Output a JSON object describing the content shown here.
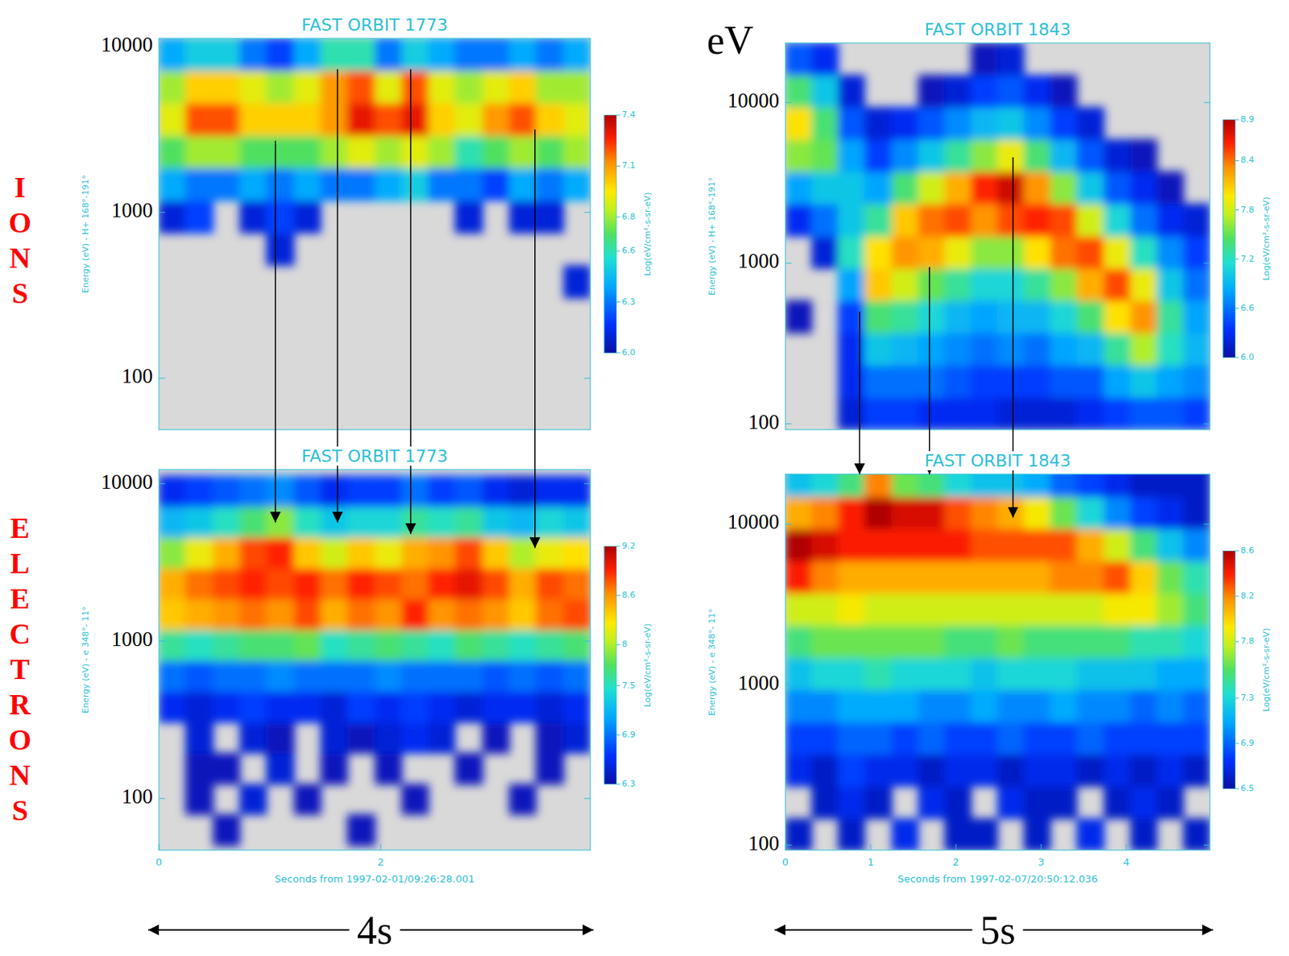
{
  "row_labels": [
    "IONS",
    "ELECTRONS"
  ],
  "unit_label": "eV",
  "chart_data": [
    {
      "type": "heatmap",
      "title": "FAST ORBIT 1773",
      "y_label": "Energy (eV) - H+ 168°-191°",
      "log": "y",
      "tick_labels": "y",
      "xlim": [
        0,
        3.89
      ],
      "ylim": [
        49,
        11200
      ],
      "yticks": [
        100,
        1000,
        10000
      ],
      "x_bins": [
        0,
        0.24,
        0.49,
        0.73,
        0.97,
        1.22,
        1.46,
        1.7,
        1.95,
        2.19,
        2.43,
        2.67,
        2.92,
        3.16,
        3.4,
        3.65,
        3.89
      ],
      "y_bins": [
        50,
        79,
        123,
        194,
        304,
        478,
        750,
        1180,
        1850,
        2900,
        4560,
        7160,
        11200
      ],
      "values": [
        [
          null,
          null,
          null,
          null,
          null,
          null,
          null,
          null,
          null,
          null,
          null,
          null,
          null,
          null,
          null,
          null
        ],
        [
          null,
          null,
          null,
          null,
          null,
          null,
          null,
          null,
          null,
          null,
          null,
          null,
          null,
          null,
          null,
          null
        ],
        [
          null,
          null,
          null,
          null,
          null,
          null,
          null,
          null,
          null,
          null,
          null,
          null,
          null,
          null,
          null,
          null
        ],
        [
          null,
          null,
          null,
          null,
          null,
          null,
          null,
          null,
          null,
          null,
          null,
          null,
          null,
          null,
          null,
          null
        ],
        [
          null,
          null,
          null,
          null,
          null,
          null,
          null,
          null,
          null,
          null,
          null,
          null,
          null,
          null,
          null,
          6.1
        ],
        [
          null,
          null,
          null,
          null,
          6.1,
          null,
          null,
          null,
          null,
          null,
          null,
          null,
          null,
          null,
          null,
          null
        ],
        [
          6.1,
          6.2,
          null,
          6.1,
          6.2,
          6.1,
          null,
          null,
          null,
          null,
          null,
          6.1,
          null,
          6.1,
          6.1,
          null
        ],
        [
          6.4,
          6.3,
          6.3,
          6.4,
          6.3,
          6.4,
          6.3,
          6.3,
          6.4,
          6.5,
          6.3,
          6.3,
          6.2,
          6.4,
          6.3,
          6.4
        ],
        [
          6.7,
          6.8,
          6.8,
          6.7,
          6.7,
          6.7,
          6.8,
          6.9,
          6.8,
          6.9,
          6.8,
          6.6,
          6.7,
          6.8,
          6.7,
          6.8
        ],
        [
          6.9,
          7.2,
          7.2,
          7.0,
          7.0,
          7.0,
          7.1,
          7.3,
          7.2,
          7.3,
          7.0,
          6.9,
          7.1,
          7.2,
          7.0,
          6.9
        ],
        [
          6.8,
          7.0,
          7.0,
          6.9,
          6.8,
          6.9,
          7.1,
          7.2,
          6.9,
          7.2,
          6.9,
          6.8,
          6.9,
          7.0,
          6.8,
          6.8
        ],
        [
          6.4,
          6.5,
          6.5,
          6.3,
          6.2,
          6.4,
          6.6,
          6.6,
          6.3,
          6.5,
          6.4,
          6.3,
          6.3,
          6.4,
          6.3,
          6.4
        ]
      ],
      "colorbar": {
        "label": "Log(eV/cm²-s-sr-eV)",
        "range": [
          6.0,
          7.4
        ],
        "ticks": [
          {
            "value": 6,
            "label": "6.0"
          },
          6.3,
          6.6,
          6.8,
          7.1,
          7.4
        ]
      },
      "arrows": [
        {
          "x": 1.05,
          "y_from": 2700,
          "y_to": 5670
        },
        {
          "x": 1.61,
          "y_from": 7300,
          "y_to": 5670
        },
        {
          "x": 2.27,
          "y_from": 7300,
          "y_to": 4790
        },
        {
          "x": 3.39,
          "y_from": 3160,
          "y_to": 3900
        }
      ]
    },
    {
      "type": "heatmap",
      "title": "FAST ORBIT 1773",
      "y_label": "Energy (eV) - e 348°- 11°",
      "log": "y",
      "x_label": "Seconds from 1997-02-01/09:26:28.001",
      "span_label": "4s",
      "xlim": [
        0,
        3.89
      ],
      "ylim": [
        47,
        12300
      ],
      "xticks": [
        0,
        2
      ],
      "yticks": [
        100,
        1000,
        10000
      ],
      "x_bins": [
        0,
        0.24,
        0.49,
        0.73,
        0.97,
        1.22,
        1.46,
        1.7,
        1.95,
        2.19,
        2.43,
        2.67,
        2.92,
        3.16,
        3.4,
        3.65,
        3.89
      ],
      "y_bins": [
        50,
        79,
        123,
        194,
        304,
        478,
        750,
        1180,
        1850,
        2900,
        4560,
        7160,
        11200
      ],
      "values": [
        [
          null,
          null,
          6.4,
          null,
          null,
          null,
          null,
          6.4,
          null,
          null,
          null,
          null,
          null,
          null,
          null,
          null
        ],
        [
          null,
          6.4,
          null,
          6.5,
          null,
          6.4,
          null,
          null,
          null,
          6.4,
          null,
          null,
          null,
          6.4,
          null,
          null
        ],
        [
          null,
          6.4,
          6.4,
          null,
          6.5,
          null,
          6.4,
          null,
          6.4,
          null,
          null,
          6.4,
          null,
          null,
          6.4,
          null
        ],
        [
          null,
          6.5,
          null,
          6.5,
          6.4,
          null,
          6.5,
          6.4,
          6.5,
          6.6,
          6.5,
          null,
          6.4,
          null,
          6.4,
          6.5
        ],
        [
          6.6,
          6.5,
          6.6,
          6.7,
          6.6,
          6.6,
          6.5,
          6.7,
          6.6,
          6.7,
          6.6,
          6.5,
          6.6,
          6.6,
          6.5,
          6.6
        ],
        [
          6.9,
          6.8,
          6.9,
          6.9,
          7.0,
          6.9,
          6.9,
          6.9,
          7.0,
          6.9,
          6.9,
          6.9,
          6.8,
          6.9,
          6.8,
          6.9
        ],
        [
          7.6,
          7.5,
          7.6,
          7.7,
          7.7,
          7.8,
          7.5,
          7.6,
          7.7,
          7.6,
          7.5,
          7.7,
          7.6,
          7.5,
          7.6,
          7.7
        ],
        [
          8.4,
          8.5,
          8.6,
          8.7,
          8.6,
          8.8,
          8.5,
          8.7,
          8.6,
          8.9,
          8.6,
          8.7,
          8.6,
          8.4,
          8.7,
          8.8
        ],
        [
          8.5,
          8.7,
          8.8,
          8.9,
          8.8,
          8.9,
          8.7,
          8.9,
          8.8,
          8.7,
          8.9,
          9.0,
          8.8,
          8.5,
          8.8,
          8.7
        ],
        [
          7.9,
          8.2,
          8.5,
          8.8,
          8.9,
          8.4,
          8.1,
          8.4,
          8.2,
          8.5,
          8.6,
          8.8,
          8.4,
          8.0,
          8.2,
          8.3
        ],
        [
          7.2,
          7.3,
          7.5,
          7.7,
          7.9,
          7.5,
          7.3,
          7.4,
          7.4,
          7.6,
          7.5,
          7.6,
          7.3,
          7.2,
          7.4,
          7.3
        ],
        [
          6.6,
          6.7,
          6.8,
          6.9,
          7.0,
          6.8,
          6.6,
          6.7,
          6.7,
          6.9,
          6.7,
          6.8,
          6.6,
          6.5,
          6.6,
          6.6
        ]
      ],
      "colorbar": {
        "label": "Log(eV/cm²-s-sr-eV)",
        "range": [
          6.3,
          9.2
        ],
        "ticks": [
          6.3,
          6.9,
          7.5,
          8.0,
          8.6,
          9.2
        ]
      }
    },
    {
      "type": "heatmap",
      "title": "FAST ORBIT 1843",
      "y_label": "Energy (eV) - H+ 168°-191°",
      "log": "y",
      "tick_labels": "y",
      "xlim": [
        0,
        4.98
      ],
      "ylim": [
        92,
        23500
      ],
      "yticks": [
        100,
        1000,
        10000
      ],
      "x_bins": [
        0,
        0.31,
        0.62,
        0.93,
        1.25,
        1.56,
        1.87,
        2.18,
        2.49,
        2.8,
        3.11,
        3.42,
        3.74,
        4.05,
        4.36,
        4.67,
        4.98
      ],
      "y_bins": [
        92,
        146,
        232,
        368,
        584,
        927,
        1470,
        2340,
        3710,
        5890,
        9350,
        14800,
        23500
      ],
      "values": [
        [
          null,
          null,
          6.2,
          6.4,
          6.4,
          6.3,
          6.3,
          6.3,
          6.2,
          6.2,
          6.2,
          6.3,
          6.4,
          6.5,
          6.5,
          6.4
        ],
        [
          null,
          null,
          6.3,
          6.6,
          6.6,
          6.6,
          6.5,
          6.4,
          6.4,
          6.4,
          6.5,
          6.5,
          6.8,
          7.0,
          6.8,
          6.7
        ],
        [
          null,
          null,
          6.3,
          7.0,
          6.9,
          6.8,
          6.7,
          6.6,
          6.7,
          6.6,
          6.8,
          6.9,
          7.3,
          7.7,
          7.2,
          6.9
        ],
        [
          6.1,
          null,
          6.4,
          7.4,
          7.3,
          7.1,
          6.9,
          6.8,
          6.9,
          6.9,
          7.1,
          7.4,
          8.0,
          8.3,
          7.3,
          6.8
        ],
        [
          null,
          null,
          6.8,
          8.1,
          7.8,
          7.5,
          7.3,
          7.1,
          7.1,
          7.3,
          7.6,
          8.2,
          8.5,
          7.9,
          7.0,
          6.6
        ],
        [
          null,
          6.2,
          7.2,
          8.0,
          8.3,
          8.2,
          7.9,
          7.6,
          7.6,
          8.0,
          8.4,
          8.5,
          7.9,
          7.2,
          6.7,
          6.4
        ],
        [
          6.3,
          6.6,
          7.0,
          7.3,
          8.1,
          8.4,
          8.5,
          8.3,
          8.5,
          8.6,
          8.5,
          7.8,
          7.1,
          6.6,
          6.3,
          6.2
        ],
        [
          6.8,
          7.0,
          7.0,
          6.8,
          7.4,
          7.8,
          8.2,
          8.6,
          8.8,
          8.3,
          7.6,
          7.0,
          6.5,
          6.3,
          6.1,
          null
        ],
        [
          7.6,
          7.5,
          6.8,
          6.4,
          6.7,
          7.0,
          7.3,
          7.6,
          7.9,
          7.4,
          6.9,
          6.5,
          6.2,
          6.1,
          null,
          null
        ],
        [
          8.0,
          7.4,
          6.5,
          6.2,
          6.3,
          6.5,
          6.7,
          6.9,
          7.0,
          6.7,
          6.4,
          6.2,
          null,
          null,
          null,
          null
        ],
        [
          7.4,
          7.0,
          6.2,
          null,
          null,
          6.1,
          6.2,
          6.4,
          6.5,
          6.3,
          6.1,
          null,
          null,
          null,
          null,
          null
        ],
        [
          6.5,
          6.3,
          null,
          null,
          null,
          null,
          null,
          6.1,
          6.2,
          null,
          null,
          null,
          null,
          null,
          null,
          null
        ]
      ],
      "colorbar": {
        "label": "Log(eV/cm²-s-sr-eV)",
        "range": [
          6.0,
          8.9
        ],
        "ticks": [
          {
            "value": 6,
            "label": "6.0"
          },
          6.6,
          7.2,
          7.8,
          8.4,
          8.9
        ]
      },
      "arrows": [
        {
          "x": 0.87,
          "y_from": 499,
          "y_to": 20500
        },
        {
          "x": 1.69,
          "y_from": 946,
          "y_to": 20500
        },
        {
          "x": 2.67,
          "y_from": 4560,
          "y_to": 11000
        }
      ]
    },
    {
      "type": "heatmap",
      "title": "FAST ORBIT 1843",
      "y_label": "Energy (eV) - e 348°- 11°",
      "log": "y",
      "x_label": "Seconds from 1997-02-07/20:50:12.036",
      "span_label": "5s",
      "xlim": [
        0,
        4.98
      ],
      "ylim": [
        93,
        20500
      ],
      "xticks": [
        0,
        1,
        2,
        3,
        4
      ],
      "yticks": [
        100,
        1000,
        10000
      ],
      "x_bins": [
        0,
        0.31,
        0.62,
        0.93,
        1.25,
        1.56,
        1.87,
        2.18,
        2.49,
        2.8,
        3.11,
        3.42,
        3.74,
        4.05,
        4.36,
        4.67,
        4.98
      ],
      "y_bins": [
        92,
        146,
        232,
        368,
        584,
        927,
        1470,
        2340,
        3710,
        5890,
        9350,
        14800,
        23500
      ],
      "values": [
        [
          6.6,
          null,
          6.6,
          null,
          6.7,
          null,
          6.6,
          6.6,
          null,
          6.6,
          null,
          6.7,
          null,
          6.6,
          null,
          6.6
        ],
        [
          null,
          6.6,
          6.7,
          6.6,
          null,
          6.7,
          6.6,
          null,
          6.7,
          6.6,
          6.6,
          null,
          6.6,
          6.7,
          6.6,
          null
        ],
        [
          6.7,
          6.6,
          6.8,
          6.7,
          6.7,
          6.6,
          6.7,
          6.7,
          6.6,
          6.7,
          6.7,
          6.6,
          6.7,
          6.6,
          6.7,
          6.6
        ],
        [
          6.8,
          6.8,
          6.9,
          6.9,
          6.8,
          6.9,
          6.8,
          6.8,
          6.9,
          6.8,
          6.8,
          6.9,
          6.8,
          6.8,
          6.8,
          6.8
        ],
        [
          7.0,
          7.0,
          7.1,
          7.1,
          7.1,
          7.0,
          7.0,
          7.1,
          7.0,
          7.0,
          7.1,
          7.0,
          7.0,
          6.9,
          7.0,
          6.9
        ],
        [
          7.2,
          7.3,
          7.3,
          7.4,
          7.3,
          7.3,
          7.3,
          7.2,
          7.3,
          7.3,
          7.3,
          7.2,
          7.2,
          7.2,
          7.1,
          7.1
        ],
        [
          7.5,
          7.6,
          7.6,
          7.6,
          7.6,
          7.6,
          7.5,
          7.5,
          7.6,
          7.5,
          7.5,
          7.5,
          7.5,
          7.4,
          7.4,
          7.3
        ],
        [
          7.8,
          7.8,
          7.9,
          7.8,
          7.8,
          7.8,
          7.8,
          7.8,
          7.8,
          7.8,
          7.8,
          7.8,
          7.9,
          7.9,
          7.7,
          7.5
        ],
        [
          8.4,
          8.2,
          8.1,
          8.1,
          8.1,
          8.1,
          8.1,
          8.1,
          8.1,
          8.1,
          8.2,
          8.2,
          8.3,
          8.0,
          7.6,
          7.4
        ],
        [
          8.6,
          8.5,
          8.4,
          8.4,
          8.4,
          8.4,
          8.4,
          8.3,
          8.3,
          8.3,
          8.3,
          8.1,
          7.8,
          7.5,
          7.2,
          7.0
        ],
        [
          8.1,
          8.2,
          8.4,
          8.6,
          8.5,
          8.5,
          8.3,
          8.2,
          8.1,
          7.9,
          7.6,
          7.3,
          7.0,
          6.8,
          6.7,
          6.6
        ],
        [
          7.2,
          7.3,
          7.5,
          8.2,
          7.6,
          7.5,
          7.3,
          7.2,
          7.2,
          7.1,
          6.9,
          6.8,
          6.7,
          6.6,
          6.6,
          6.6
        ]
      ],
      "colorbar": {
        "label": "Log(eV/cm²-s-sr-eV)",
        "range": [
          6.5,
          8.6
        ],
        "ticks": [
          6.5,
          6.9,
          7.3,
          7.8,
          8.2,
          8.6
        ]
      }
    }
  ]
}
